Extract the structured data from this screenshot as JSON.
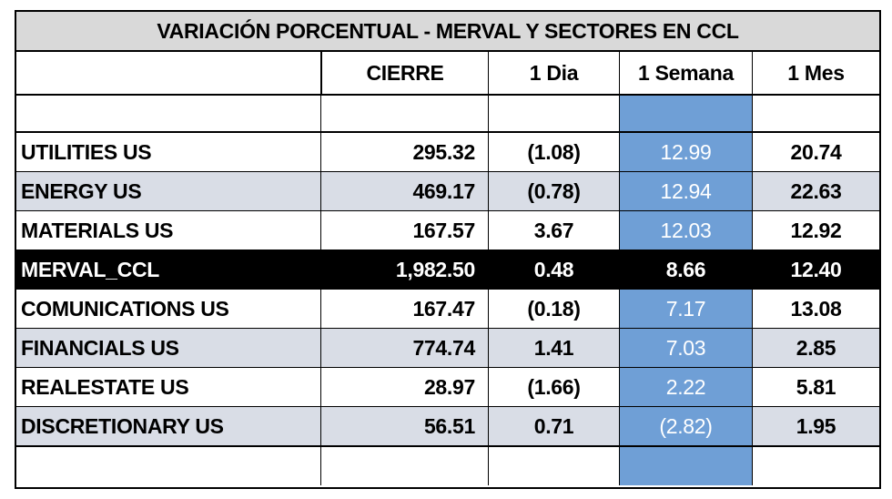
{
  "table": {
    "title": "VARIACIÓN PORCENTUAL  - MERVAL Y SECTORES EN CCL",
    "headers": [
      "",
      "CIERRE",
      "1 Dia",
      "1 Semana",
      "1 Mes"
    ],
    "rows": [
      {
        "name": "UTILITIES US",
        "cierre": "295.32",
        "dia": "(1.08)",
        "semana": "12.99",
        "mes": "20.74"
      },
      {
        "name": "ENERGY US",
        "cierre": "469.17",
        "dia": "(0.78)",
        "semana": "12.94",
        "mes": "22.63"
      },
      {
        "name": "MATERIALS US",
        "cierre": "167.57",
        "dia": "3.67",
        "semana": "12.03",
        "mes": "12.92"
      },
      {
        "name": "MERVAL_CCL",
        "cierre": "1,982.50",
        "dia": "0.48",
        "semana": "8.66",
        "mes": "12.40"
      },
      {
        "name": "COMUNICATIONS US",
        "cierre": "167.47",
        "dia": "(0.18)",
        "semana": "7.17",
        "mes": "13.08"
      },
      {
        "name": "FINANCIALS US",
        "cierre": "774.74",
        "dia": "1.41",
        "semana": "7.03",
        "mes": "2.85"
      },
      {
        "name": "REALESTATE US",
        "cierre": "28.97",
        "dia": "(1.66)",
        "semana": "2.22",
        "mes": "5.81"
      },
      {
        "name": "DISCRETIONARY US",
        "cierre": "56.51",
        "dia": "0.71",
        "semana": "(2.82)",
        "mes": "1.95"
      }
    ]
  },
  "colors": {
    "highlight_column": "#6f9fd6",
    "shaded_row": "#d9dde6",
    "header_band": "#d9d9d9",
    "merval_row": "#000000"
  }
}
